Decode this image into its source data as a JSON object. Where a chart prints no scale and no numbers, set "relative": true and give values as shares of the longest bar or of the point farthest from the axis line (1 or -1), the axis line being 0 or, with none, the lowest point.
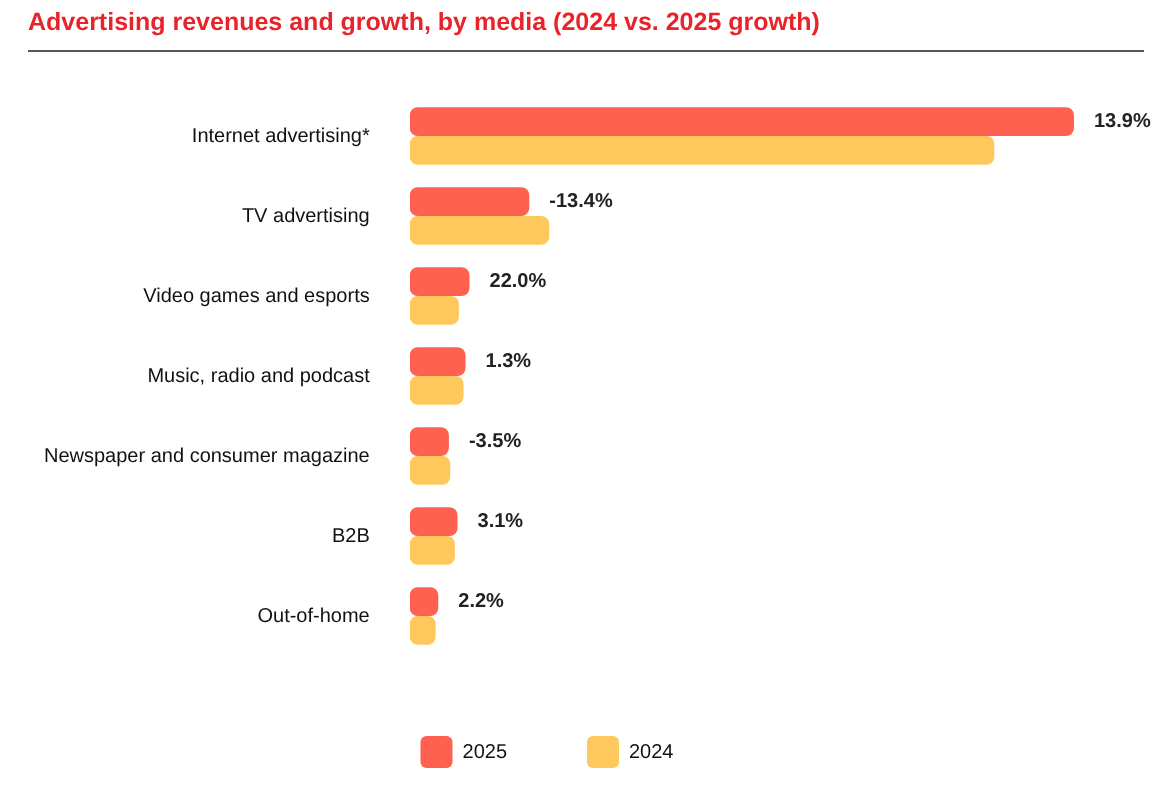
{
  "chart_data": {
    "type": "bar",
    "orientation": "horizontal",
    "relative": true,
    "title": "Advertising revenues and growth, by media (2024 vs. 2025 growth)",
    "categories": [
      "Internet advertising*",
      "TV advertising",
      "Video games and esports",
      "Music, radio and podcast",
      "Newspaper and consumer magazine",
      "B2B",
      "Out-of-home"
    ],
    "series": [
      {
        "name": "2025",
        "color": "#ff6150",
        "values": [
          1,
          0.18,
          0.09,
          0.084,
          0.059,
          0.072,
          0.043
        ]
      },
      {
        "name": "2024",
        "color": "#ffc85c",
        "values": [
          0.88,
          0.21,
          0.074,
          0.081,
          0.061,
          0.068,
          0.039
        ]
      }
    ],
    "annotations": [
      {
        "text": "13.9%",
        "x": 1,
        "y": "Internet advertising*"
      },
      {
        "text": "-13.4%",
        "x": 0.18,
        "y": "TV advertising"
      },
      {
        "text": "22.0%",
        "x": 0.09,
        "y": "Video games and esports"
      },
      {
        "text": "1.3%",
        "x": 0.084,
        "y": "Music, radio and podcast"
      },
      {
        "text": "-3.5%",
        "x": 0.059,
        "y": "Newspaper and consumer magazine"
      },
      {
        "text": "3.1%",
        "x": 0.072,
        "y": "B2B"
      },
      {
        "text": "2.2%",
        "x": 0.043,
        "y": "Out-of-home"
      }
    ],
    "legend": "bottom"
  }
}
